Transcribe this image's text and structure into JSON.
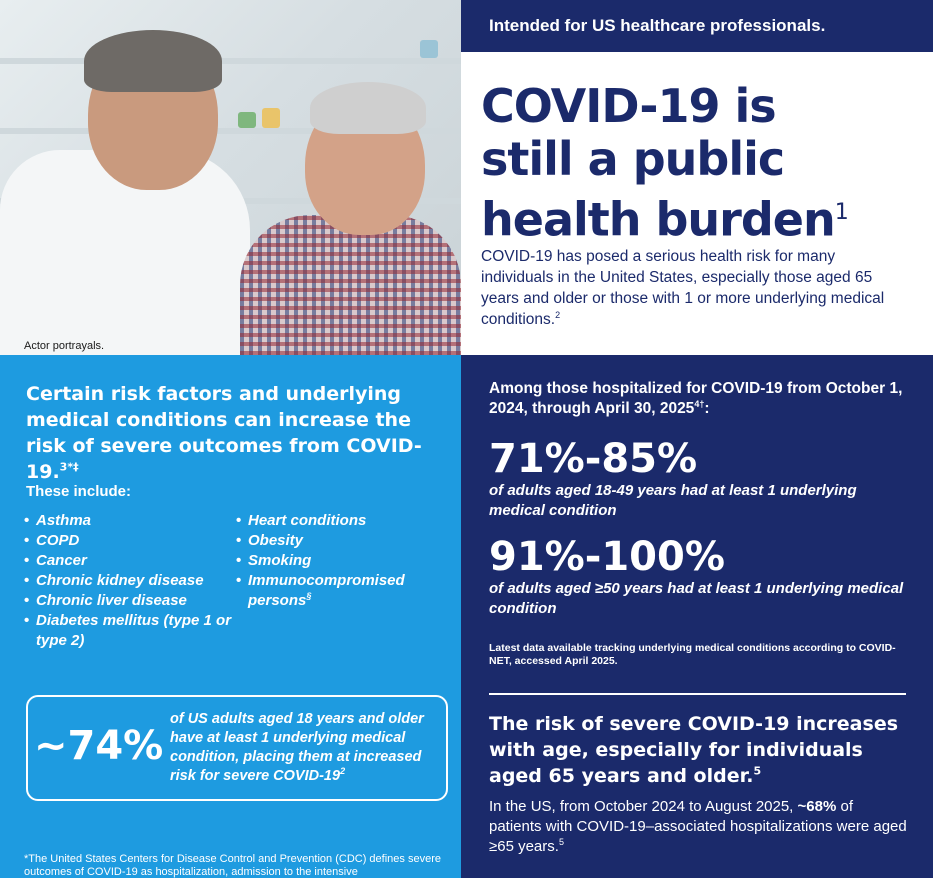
{
  "photo": {
    "caption": "Actor portrayals."
  },
  "banner": {
    "text": "Intended for US healthcare professionals."
  },
  "hero": {
    "title_line1": "COVID-19 is",
    "title_line2": "still a public",
    "title_line3": "health burden",
    "title_ref": "1",
    "body": "COVID-19 has posed a serious health risk for many individuals in the United States, especially those aged 65 years and older or those with 1 or more underlying medical conditions.",
    "body_ref": "2"
  },
  "risk_panel": {
    "heading": "Certain risk factors and underlying medical conditions can increase the risk of severe outcomes from COVID-19.",
    "heading_ref": "3*‡",
    "subheading": "These include:",
    "list_col1": [
      "Asthma",
      "COPD",
      "Cancer",
      "Chronic kidney disease",
      "Chronic liver disease",
      "Diabetes mellitus (type 1 or type 2)"
    ],
    "list_col2": [
      "Heart conditions",
      "Obesity",
      "Smoking",
      "Immunocompromised persons"
    ],
    "list_col2_last_ref": "§",
    "stat_value": "~74%",
    "stat_text": "of US adults aged 18 years and older have at least 1 underlying medical condition, placing them at increased risk for severe COVID-19",
    "stat_ref": "2",
    "footnote": "*The United States Centers for Disease Control and Prevention (CDC) defines severe outcomes of COVID-19 as hospitalization, admission to the intensive"
  },
  "hosp_panel": {
    "intro": "Among those hospitalized for COVID-19 from October 1, 2024, through April 30, 2025",
    "intro_ref": "4†",
    "stat1_value": "71%-85%",
    "stat1_desc": "of adults aged 18-49 years had at least 1 underlying medical condition",
    "stat2_value": "91%-100%",
    "stat2_desc": "of adults aged ≥50 years had at least 1 underlying medical condition",
    "note": "Latest data available tracking underlying medical conditions according to COVID-NET, accessed April 2025.",
    "heading2": "The risk of severe COVID-19 increases with age, especially for individuals aged 65 years and older.",
    "heading2_ref": "5",
    "body_prefix": "In the US, from October 2024 to August 2025,",
    "body_bold": "~68%",
    "body_suffix": "of patients with COVID-19–associated hospitalizations were aged ≥65 years.",
    "body_ref": "5"
  },
  "colors": {
    "navy": "#1b2a6b",
    "sky": "#1e9be0"
  }
}
